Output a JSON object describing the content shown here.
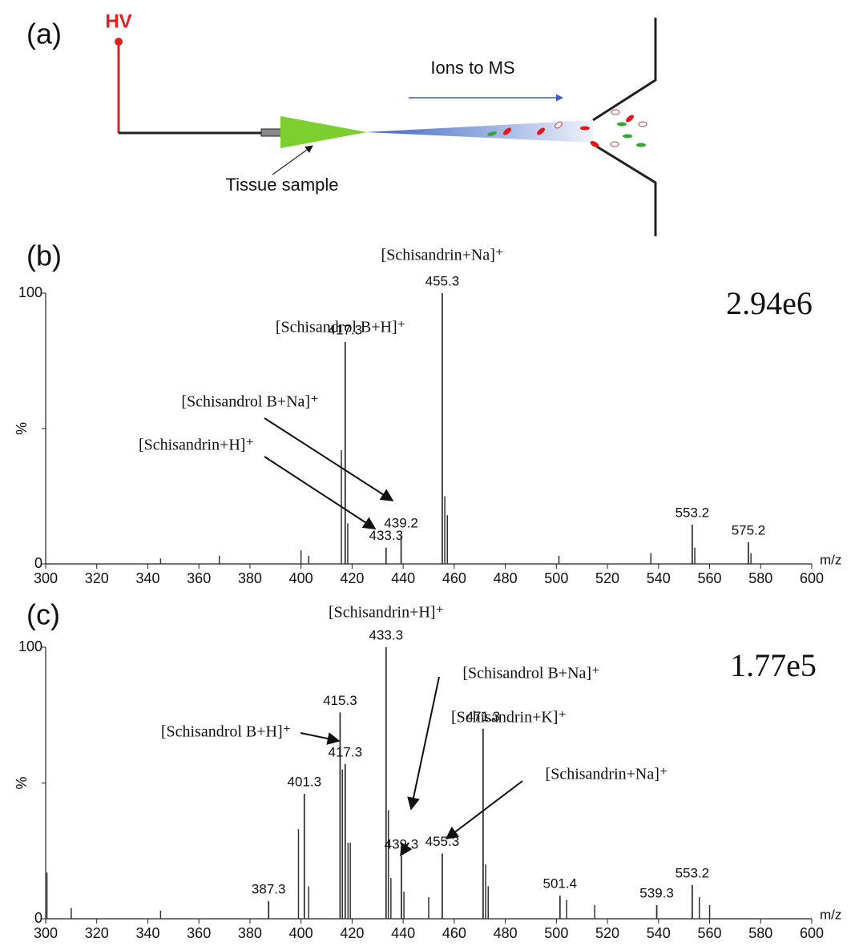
{
  "diagram": {
    "panel_label": "(a)",
    "voltage_label": "HV",
    "flow_label": "Ions to MS",
    "sample_label": "Tissue sample"
  },
  "chart_data": [
    {
      "type": "stick",
      "panel_label": "(b)",
      "scale_label": "2.94e6",
      "x_label": "m/z",
      "y_label": "%",
      "xlim": [
        300,
        600
      ],
      "xticks": [
        300,
        320,
        340,
        360,
        380,
        400,
        420,
        440,
        460,
        480,
        500,
        520,
        540,
        560,
        580,
        600
      ],
      "ylim": [
        0,
        100
      ],
      "yticks": [
        0,
        100
      ],
      "color": "#333333",
      "peaks": {
        "x": [
          417.3,
          433.3,
          439.2,
          455.3,
          553.2,
          575.2
        ],
        "values": [
          82,
          6,
          10.6,
          100,
          14.5,
          8
        ]
      },
      "minor_peaks": {
        "x": [
          345,
          368,
          400,
          403,
          415.8,
          418.3,
          456.3,
          457.3,
          501,
          537,
          554.2,
          576.2
        ],
        "values": [
          2,
          3,
          5,
          3,
          42,
          15,
          25,
          18,
          3,
          4,
          6,
          4
        ]
      },
      "annotations": [
        "[Schisandrin+Na]⁺",
        "[Schisandrol B+H]⁺",
        "[Schisandrol B+Na]⁺",
        "[Schisandrin+H]⁺"
      ]
    },
    {
      "type": "stick",
      "panel_label": "(c)",
      "scale_label": "1.77e5",
      "x_label": "m/z",
      "y_label": "%",
      "xlim": [
        300,
        600
      ],
      "xticks": [
        300,
        320,
        340,
        360,
        380,
        400,
        420,
        440,
        460,
        480,
        500,
        520,
        540,
        560,
        580,
        600
      ],
      "ylim": [
        0,
        100
      ],
      "yticks": [
        0,
        100
      ],
      "color": "#333333",
      "peaks": {
        "x": [
          387.3,
          401.3,
          415.3,
          417.3,
          433.3,
          439.3,
          455.3,
          471.3,
          501.4,
          539.3,
          553.2
        ],
        "values": [
          6.5,
          46,
          76,
          57,
          100,
          23,
          24,
          70,
          8.5,
          5,
          12.4
        ]
      },
      "minor_peaks": {
        "x": [
          300.5,
          310,
          345,
          399,
          403,
          416.2,
          418.4,
          419.3,
          434.2,
          435.2,
          440.3,
          450,
          472.3,
          473.3,
          504,
          515,
          556,
          560
        ],
        "values": [
          17,
          4,
          3,
          33,
          12,
          55,
          28,
          28,
          40,
          15,
          10,
          8,
          20,
          12,
          7,
          5,
          8,
          5
        ]
      },
      "annotations": [
        "[Schisandrin+H]⁺",
        "[Schisandrol B+Na]⁺",
        "[Schisandrin+K]⁺",
        "[Schisandrol B+H]⁺",
        "[Schisandrin+Na]⁺"
      ]
    }
  ]
}
